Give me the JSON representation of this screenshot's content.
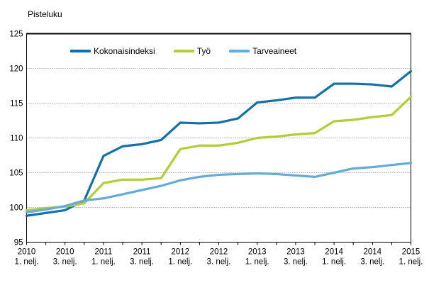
{
  "title": "Pisteluku",
  "chart_data": {
    "type": "line",
    "title": "Pisteluku",
    "xlabel": "",
    "ylabel": "Pisteluku",
    "ylim": [
      95,
      125
    ],
    "y_ticks": [
      95,
      100,
      105,
      110,
      115,
      120,
      125
    ],
    "grid": "horizontal-dotted",
    "legend_position": "top-inside-horizontal",
    "x": [
      "2010 1. nelj.",
      "2010 2. nelj.",
      "2010 3. nelj.",
      "2010 4. nelj.",
      "2011 1. nelj.",
      "2011 2. nelj.",
      "2011 3. nelj.",
      "2011 4. nelj.",
      "2012 1. nelj.",
      "2012 2. nelj.",
      "2012 3. nelj.",
      "2012 4. nelj.",
      "2013 1. nelj.",
      "2013 2. nelj.",
      "2013 3. nelj.",
      "2013 4. nelj.",
      "2014 1. nelj.",
      "2014 2. nelj.",
      "2014 3. nelj.",
      "2014 4. nelj.",
      "2015 1. nelj."
    ],
    "x_tick_labels": [
      [
        "2010",
        "1. nelj."
      ],
      [
        "2010",
        "3. nelj."
      ],
      [
        "2011",
        "1. nelj."
      ],
      [
        "2011",
        "3. nelj."
      ],
      [
        "2012",
        "1. nelj."
      ],
      [
        "2012",
        "3. nelj."
      ],
      [
        "2013",
        "1. nelj."
      ],
      [
        "2013",
        "3. nelj."
      ],
      [
        "2014",
        "1. nelj."
      ],
      [
        "2014",
        "3. nelj."
      ],
      [
        "2015",
        "1. nelj."
      ]
    ],
    "series": [
      {
        "name": "Kokonaisindeksi",
        "color": "#1170aa",
        "values": [
          98.8,
          99.2,
          99.6,
          101.0,
          107.4,
          108.8,
          109.1,
          109.7,
          112.2,
          112.1,
          112.2,
          112.8,
          115.1,
          115.4,
          115.8,
          115.8,
          117.8,
          117.8,
          117.7,
          117.4,
          119.6
        ]
      },
      {
        "name": "Työ",
        "color": "#b2cd35",
        "values": [
          99.6,
          99.9,
          100.1,
          100.6,
          103.5,
          104.0,
          104.0,
          104.2,
          108.4,
          108.9,
          108.9,
          109.3,
          110.0,
          110.2,
          110.5,
          110.7,
          112.4,
          112.6,
          113.0,
          113.3,
          115.9
        ]
      },
      {
        "name": "Tarveaineet",
        "color": "#64abdb",
        "values": [
          99.3,
          99.7,
          100.2,
          101.0,
          101.3,
          101.9,
          102.5,
          103.1,
          103.9,
          104.4,
          104.7,
          104.8,
          104.9,
          104.8,
          104.6,
          104.4,
          105.0,
          105.6,
          105.8,
          106.1,
          106.4
        ]
      }
    ],
    "colors": {
      "axis": "#000000",
      "gridline": "#8a8a8a",
      "background": "#ffffff"
    }
  }
}
